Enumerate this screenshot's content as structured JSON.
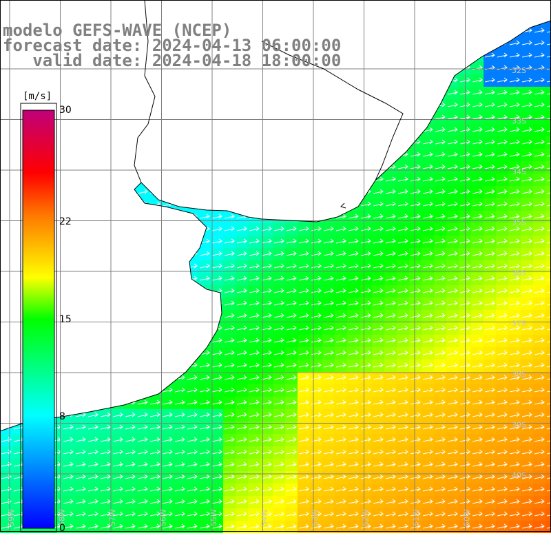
{
  "title": {
    "line1": "modelo GEFS-WAVE (NCEP)",
    "line2": "forecast date: 2024-04-13 06:00:00",
    "line3": "   valid date: 2024-04-18 18:00:00"
  },
  "colorbar": {
    "unit": "[m/s]",
    "ticks": [
      {
        "value": 30,
        "label": "30"
      },
      {
        "value": 22,
        "label": "22"
      },
      {
        "value": 15,
        "label": "15"
      },
      {
        "value": 8,
        "label": "8"
      },
      {
        "value": 0,
        "label": "0"
      }
    ],
    "min": 0,
    "max": 30
  },
  "map": {
    "lon_range": [
      -60,
      -49
    ],
    "lat_range": [
      -40.5,
      -31
    ],
    "lat_labels": [
      "32S",
      "33S",
      "34S",
      "35S",
      "36S",
      "37S",
      "38S",
      "39S",
      "40S"
    ],
    "lon_labels": [
      "59W",
      "58W",
      "57W",
      "56W",
      "55W",
      "54W",
      "53W",
      "52W",
      "51W",
      "50W"
    ],
    "wind_direction": "east-northeast",
    "land_color": "#ffffff",
    "grid_color": "#808080"
  }
}
